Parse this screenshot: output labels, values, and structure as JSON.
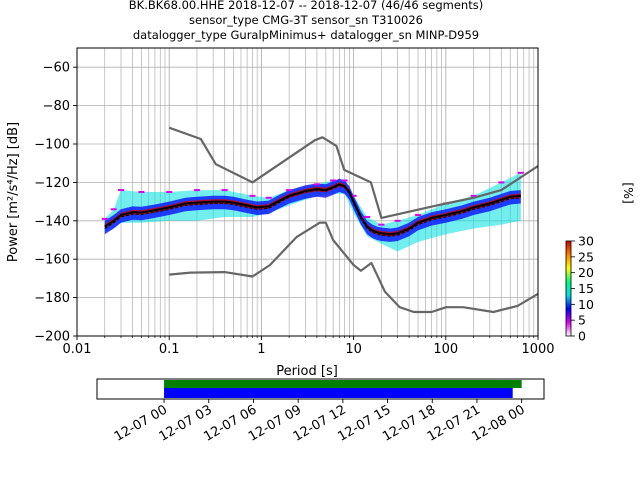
{
  "chart_data": {
    "type": "line",
    "title_lines": [
      "BK.BK68.00.HHE   2018-12-07 -- 2018-12-07  (46/46 segments)",
      "sensor_type CMG-3T sensor_sn T310026",
      "datalogger_type GuralpMinimus+ datalogger_sn MINP-D959"
    ],
    "xlabel": "Period [s]",
    "ylabel": "Power [m²/s⁴/Hz] [dB]",
    "xscale": "log",
    "xlim": [
      0.01,
      1000
    ],
    "ylim": [
      -200,
      -50
    ],
    "x_ticks": [
      {
        "v": 0.01,
        "label": "0.01"
      },
      {
        "v": 0.1,
        "label": "0.1"
      },
      {
        "v": 1,
        "label": "1"
      },
      {
        "v": 10,
        "label": "10"
      },
      {
        "v": 100,
        "label": "100"
      },
      {
        "v": 1000,
        "label": "1000"
      }
    ],
    "y_ticks": [
      {
        "v": -60,
        "label": "−60"
      },
      {
        "v": -80,
        "label": "−80"
      },
      {
        "v": -100,
        "label": "−100"
      },
      {
        "v": -120,
        "label": "−120"
      },
      {
        "v": -140,
        "label": "−140"
      },
      {
        "v": -160,
        "label": "−160"
      },
      {
        "v": -180,
        "label": "−180"
      },
      {
        "v": -200,
        "label": "−200"
      }
    ],
    "grid": true,
    "colors": {
      "model": "#666666",
      "mean": "#000000",
      "median": "#000000"
    },
    "series": [
      {
        "role": "noise-model-high",
        "points": [
          [
            0.1,
            -91.5
          ],
          [
            0.22,
            -97.4
          ],
          [
            0.32,
            -110.5
          ],
          [
            0.8,
            -120
          ],
          [
            3.8,
            -98
          ],
          [
            4.6,
            -96.5
          ],
          [
            6.5,
            -101
          ],
          [
            7.9,
            -113.5
          ],
          [
            15.4,
            -120
          ],
          [
            20,
            -138.5
          ],
          [
            80,
            -132
          ],
          [
            100,
            -131
          ],
          [
            200,
            -128
          ],
          [
            400,
            -124
          ],
          [
            1000,
            -111.5
          ]
        ]
      },
      {
        "role": "noise-model-low",
        "points": [
          [
            0.1,
            -168
          ],
          [
            0.17,
            -167
          ],
          [
            0.4,
            -166.7
          ],
          [
            0.8,
            -169
          ],
          [
            1.24,
            -163
          ],
          [
            2.4,
            -148.5
          ],
          [
            4.3,
            -141
          ],
          [
            5.0,
            -141
          ],
          [
            6.0,
            -150
          ],
          [
            10,
            -163
          ],
          [
            12,
            -166
          ],
          [
            15.6,
            -162
          ],
          [
            21.9,
            -177
          ],
          [
            31.6,
            -185
          ],
          [
            45,
            -187.5
          ],
          [
            70,
            -187.5
          ],
          [
            101,
            -185
          ],
          [
            154,
            -185
          ],
          [
            328,
            -187.5
          ],
          [
            600,
            -184.3
          ],
          [
            1000,
            -178
          ]
        ]
      },
      {
        "role": "mean",
        "points": [
          [
            0.02,
            -143
          ],
          [
            0.025,
            -140
          ],
          [
            0.03,
            -137
          ],
          [
            0.04,
            -135.5
          ],
          [
            0.05,
            -135.7
          ],
          [
            0.07,
            -134.5
          ],
          [
            0.1,
            -133
          ],
          [
            0.15,
            -131
          ],
          [
            0.2,
            -130.5
          ],
          [
            0.3,
            -130
          ],
          [
            0.4,
            -130
          ],
          [
            0.5,
            -130.5
          ],
          [
            0.7,
            -132
          ],
          [
            0.9,
            -133
          ],
          [
            1.2,
            -132.5
          ],
          [
            1.5,
            -130
          ],
          [
            2,
            -127
          ],
          [
            3,
            -124.5
          ],
          [
            4,
            -123.5
          ],
          [
            5,
            -124
          ],
          [
            6,
            -122.5
          ],
          [
            7,
            -121
          ],
          [
            8,
            -122
          ],
          [
            9,
            -125
          ],
          [
            10,
            -130
          ],
          [
            12,
            -138
          ],
          [
            14,
            -143
          ],
          [
            16,
            -145
          ],
          [
            18,
            -146
          ],
          [
            20,
            -146.5
          ],
          [
            25,
            -147
          ],
          [
            30,
            -146.5
          ],
          [
            40,
            -144
          ],
          [
            50,
            -141
          ],
          [
            70,
            -138.5
          ],
          [
            100,
            -137
          ],
          [
            150,
            -135
          ],
          [
            200,
            -133
          ],
          [
            300,
            -131
          ],
          [
            400,
            -129
          ],
          [
            500,
            -127.5
          ],
          [
            650,
            -127
          ]
        ]
      },
      {
        "role": "median",
        "points": [
          [
            0.02,
            -144
          ],
          [
            0.025,
            -141
          ],
          [
            0.03,
            -138
          ],
          [
            0.04,
            -136.5
          ],
          [
            0.05,
            -136.7
          ],
          [
            0.07,
            -135.5
          ],
          [
            0.1,
            -134
          ],
          [
            0.15,
            -132
          ],
          [
            0.2,
            -131.5
          ],
          [
            0.3,
            -131
          ],
          [
            0.4,
            -131
          ],
          [
            0.5,
            -131.5
          ],
          [
            0.7,
            -133
          ],
          [
            0.9,
            -134
          ],
          [
            1.2,
            -133.5
          ],
          [
            1.5,
            -131
          ],
          [
            2,
            -127.5
          ],
          [
            3,
            -125
          ],
          [
            4,
            -124
          ],
          [
            5,
            -124.5
          ],
          [
            6,
            -123
          ],
          [
            7,
            -121.5
          ],
          [
            8,
            -122.5
          ],
          [
            9,
            -126
          ],
          [
            10,
            -131
          ],
          [
            12,
            -139
          ],
          [
            14,
            -144
          ],
          [
            16,
            -146
          ],
          [
            18,
            -147
          ],
          [
            20,
            -147.5
          ],
          [
            25,
            -148
          ],
          [
            30,
            -147.5
          ],
          [
            40,
            -145
          ],
          [
            50,
            -142
          ],
          [
            70,
            -139.5
          ],
          [
            100,
            -138
          ],
          [
            150,
            -136
          ],
          [
            200,
            -134
          ],
          [
            300,
            -132
          ],
          [
            400,
            -130
          ],
          [
            500,
            -128.5
          ],
          [
            650,
            -128
          ]
        ]
      }
    ],
    "histogram_spread": [
      {
        "x": 0.02,
        "lo": -146,
        "hi": -139
      },
      {
        "x": 0.025,
        "lo": -144,
        "hi": -134
      },
      {
        "x": 0.03,
        "lo": -141,
        "hi": -124
      },
      {
        "x": 0.05,
        "lo": -141,
        "hi": -125
      },
      {
        "x": 0.1,
        "lo": -140,
        "hi": -125
      },
      {
        "x": 0.2,
        "lo": -140,
        "hi": -124
      },
      {
        "x": 0.4,
        "lo": -138,
        "hi": -124
      },
      {
        "x": 0.8,
        "lo": -138,
        "hi": -127
      },
      {
        "x": 1.2,
        "lo": -136,
        "hi": -128
      },
      {
        "x": 2,
        "lo": -132,
        "hi": -124
      },
      {
        "x": 4,
        "lo": -127,
        "hi": -121
      },
      {
        "x": 6,
        "lo": -126,
        "hi": -119
      },
      {
        "x": 8,
        "lo": -126,
        "hi": -119
      },
      {
        "x": 10,
        "lo": -136,
        "hi": -127
      },
      {
        "x": 14,
        "lo": -148,
        "hi": -138
      },
      {
        "x": 20,
        "lo": -152,
        "hi": -142
      },
      {
        "x": 30,
        "lo": -156,
        "hi": -140
      },
      {
        "x": 50,
        "lo": -151,
        "hi": -137
      },
      {
        "x": 100,
        "lo": -147,
        "hi": -131
      },
      {
        "x": 200,
        "lo": -144,
        "hi": -127
      },
      {
        "x": 400,
        "lo": -142,
        "hi": -120
      },
      {
        "x": 650,
        "lo": -140,
        "hi": -115
      }
    ],
    "colorbar": {
      "label": "[%]",
      "min": 0,
      "max": 30,
      "ticks": [
        {
          "v": 0,
          "label": "0"
        },
        {
          "v": 5,
          "label": "5"
        },
        {
          "v": 10,
          "label": "10"
        },
        {
          "v": 15,
          "label": "15"
        },
        {
          "v": 20,
          "label": "20"
        },
        {
          "v": 25,
          "label": "25"
        },
        {
          "v": 30,
          "label": "30"
        }
      ],
      "stops": [
        "#ffffff",
        "#dd00ee",
        "#0000ff",
        "#00e0e0",
        "#00ff80",
        "#ffff00",
        "#ff7f00",
        "#cc0000"
      ]
    },
    "coverage": {
      "start_hour": -4.5,
      "end_hour": 25.5,
      "ticks": [
        {
          "h": 0,
          "label": "12-07 00"
        },
        {
          "h": 3,
          "label": "12-07 03"
        },
        {
          "h": 6,
          "label": "12-07 06"
        },
        {
          "h": 9,
          "label": "12-07 09"
        },
        {
          "h": 12,
          "label": "12-07 12"
        },
        {
          "h": 15,
          "label": "12-07 15"
        },
        {
          "h": 18,
          "label": "12-07 18"
        },
        {
          "h": 21,
          "label": "12-07 21"
        },
        {
          "h": 24,
          "label": "12-08 00"
        }
      ],
      "bars": [
        {
          "role": "data-available",
          "start_h": 0,
          "end_h": 24.0,
          "color": "#008000"
        },
        {
          "role": "data-used",
          "start_h": 0,
          "end_h": 23.4,
          "color": "#0000ff"
        }
      ]
    }
  }
}
